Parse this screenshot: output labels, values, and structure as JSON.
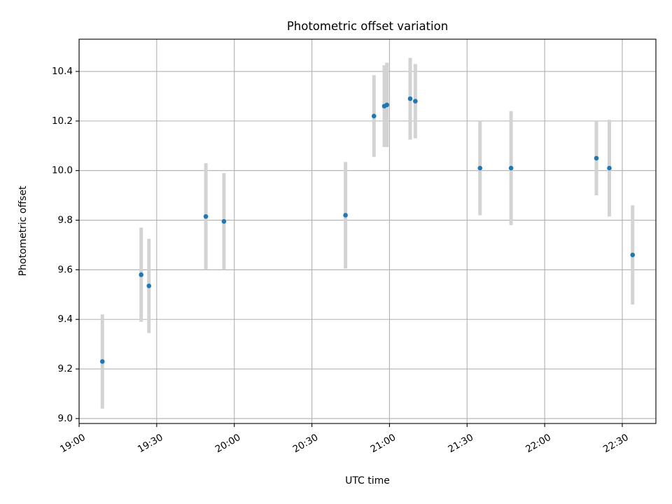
{
  "chart_data": {
    "type": "scatter",
    "title": "Photometric offset variation",
    "xlabel": "UTC time",
    "ylabel": "Photometric offset",
    "x_ticks": [
      "19:00",
      "19:30",
      "20:00",
      "20:30",
      "21:00",
      "21:30",
      "22:00",
      "22:30"
    ],
    "y_ticks": [
      "9.0",
      "9.2",
      "9.4",
      "9.6",
      "9.8",
      "10.0",
      "10.2",
      "10.4"
    ],
    "xlim": [
      "19:00",
      "22:43"
    ],
    "ylim": [
      8.98,
      10.53
    ],
    "grid": true,
    "legend": "none",
    "marker_color": "#1f77b4",
    "errorbar_color": "#d3d3d3",
    "points": [
      {
        "x": "19:09",
        "y": 9.23,
        "err": 0.19
      },
      {
        "x": "19:24",
        "y": 9.58,
        "err": 0.19
      },
      {
        "x": "19:27",
        "y": 9.535,
        "err": 0.19
      },
      {
        "x": "19:49",
        "y": 9.815,
        "err": 0.215
      },
      {
        "x": "19:56",
        "y": 9.795,
        "err": 0.195
      },
      {
        "x": "20:43",
        "y": 9.82,
        "err": 0.215
      },
      {
        "x": "20:54",
        "y": 10.22,
        "err": 0.165
      },
      {
        "x": "20:58",
        "y": 10.26,
        "err": 0.165
      },
      {
        "x": "20:59",
        "y": 10.265,
        "err": 0.17
      },
      {
        "x": "21:08",
        "y": 10.29,
        "err": 0.165
      },
      {
        "x": "21:10",
        "y": 10.28,
        "err": 0.15
      },
      {
        "x": "21:35",
        "y": 10.01,
        "err": 0.19
      },
      {
        "x": "21:47",
        "y": 10.01,
        "err": 0.23
      },
      {
        "x": "22:20",
        "y": 10.05,
        "err": 0.15
      },
      {
        "x": "22:25",
        "y": 10.01,
        "err": 0.195
      },
      {
        "x": "22:34",
        "y": 9.66,
        "err": 0.2
      }
    ]
  }
}
